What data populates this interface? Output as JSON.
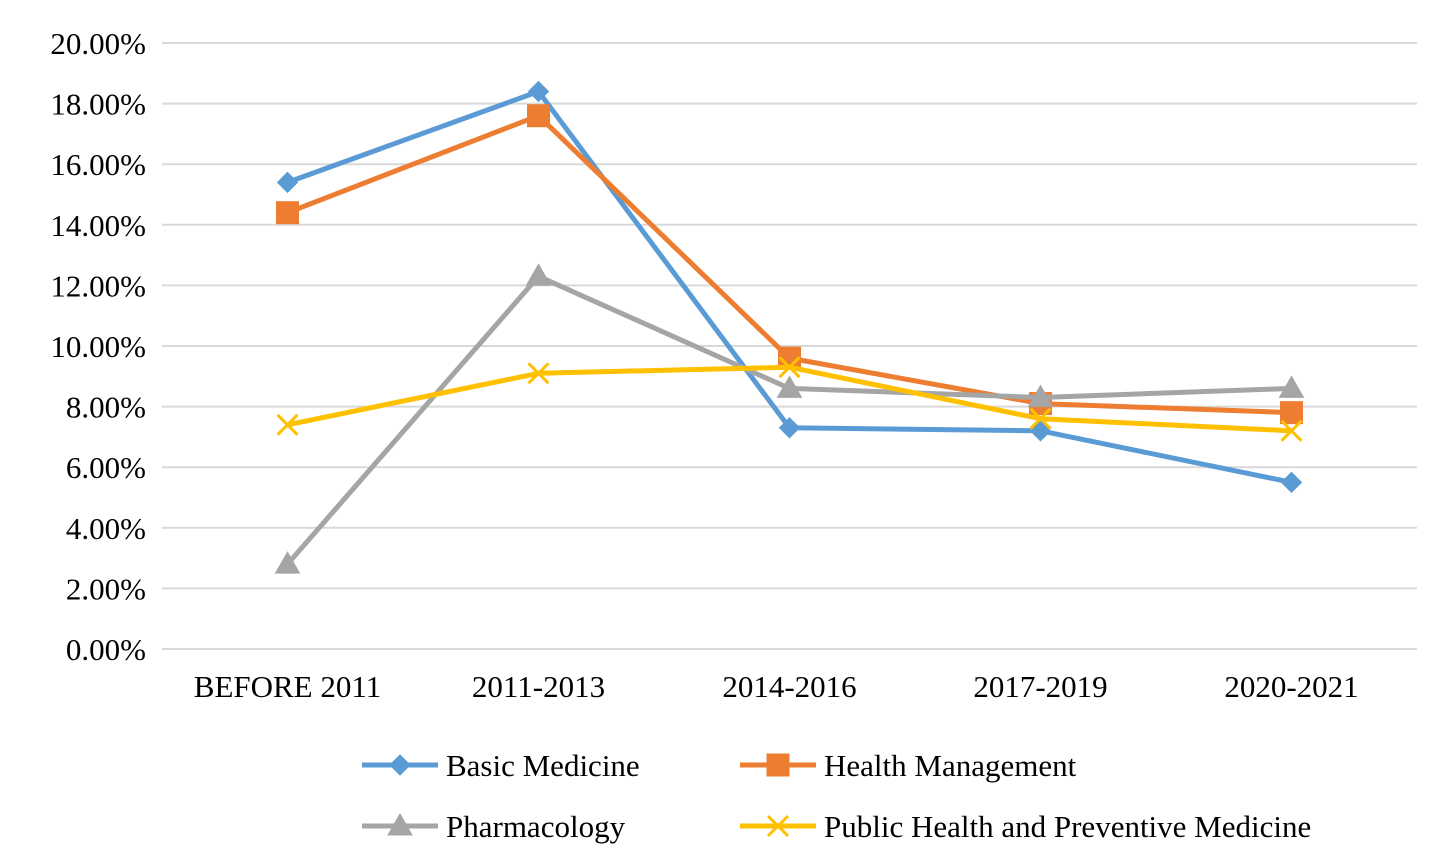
{
  "chart_data": {
    "type": "line",
    "title": "",
    "xlabel": "",
    "ylabel": "",
    "categories": [
      "BEFORE 2011",
      "2011-2013",
      "2014-2016",
      "2017-2019",
      "2020-2021"
    ],
    "yticks": [
      "0.00%",
      "2.00%",
      "4.00%",
      "6.00%",
      "8.00%",
      "10.00%",
      "12.00%",
      "14.00%",
      "16.00%",
      "18.00%",
      "20.00%"
    ],
    "ylim": [
      0,
      20
    ],
    "y_unit": "percent",
    "grid": true,
    "legend_position": "bottom",
    "series": [
      {
        "name": "Basic Medicine",
        "color": "#5b9bd5",
        "marker": "diamond",
        "values": [
          15.4,
          18.4,
          7.3,
          7.2,
          5.5
        ]
      },
      {
        "name": "Health Management",
        "color": "#ed7d31",
        "marker": "square",
        "values": [
          14.4,
          17.6,
          9.6,
          8.1,
          7.8
        ]
      },
      {
        "name": "Pharmacology",
        "color": "#a5a5a5",
        "marker": "triangle",
        "values": [
          2.8,
          12.3,
          8.6,
          8.3,
          8.6
        ]
      },
      {
        "name": "Public Health and Preventive Medicine",
        "color": "#ffc000",
        "marker": "x",
        "values": [
          7.4,
          9.1,
          9.3,
          7.6,
          7.2
        ]
      }
    ]
  }
}
